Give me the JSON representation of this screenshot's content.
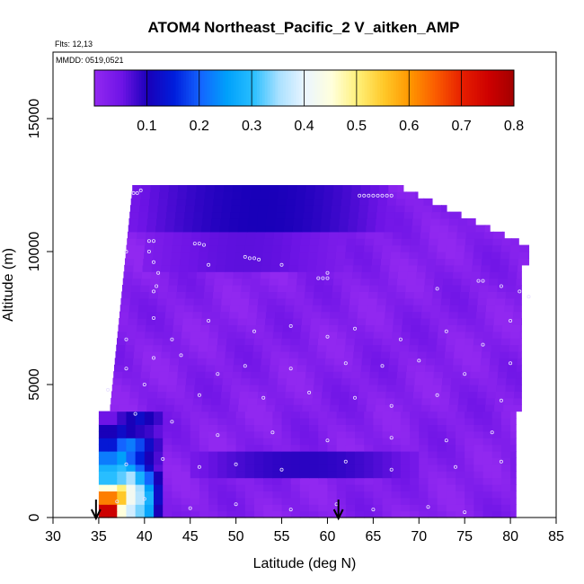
{
  "chart_data": {
    "type": "heatmap",
    "title": "ATOM4 Northeast_Pacific_2 V_aitken_AMP",
    "subtitle_flights": "Flts: 12,13",
    "subtitle_dates": "MMDD: 0519,0521",
    "xlabel": "Latitude (deg N)",
    "ylabel": "Altitude (m)",
    "xlim": [
      30,
      85
    ],
    "ylim": [
      0,
      17500
    ],
    "x_ticks": [
      "30",
      "35",
      "40",
      "45",
      "50",
      "55",
      "60",
      "65",
      "70",
      "75",
      "80",
      "85"
    ],
    "y_ticks": [
      "0",
      "5000",
      "10000",
      "15000"
    ],
    "colorbar": {
      "range": [
        0,
        0.8
      ],
      "tick_labels": [
        "0.1",
        "0.2",
        "0.3",
        "0.4",
        "0.5",
        "0.6",
        "0.7",
        "0.8"
      ]
    },
    "background_value": 0.02,
    "features": [
      {
        "desc": "upper band",
        "lat": [
          38.5,
          67
        ],
        "alt": [
          10800,
          12500
        ],
        "value": 0.1
      },
      {
        "desc": "mid-upper layer",
        "lat": [
          40,
          62
        ],
        "alt": [
          9200,
          10800
        ],
        "value": 0.06
      },
      {
        "desc": "low band",
        "lat": [
          45,
          70
        ],
        "alt": [
          1400,
          2400
        ],
        "value": 0.09
      },
      {
        "desc": "southern boundary column",
        "lat": [
          35,
          41.5
        ],
        "alt": [
          0,
          4000
        ],
        "value": 0.35
      }
    ],
    "profile_column": [
      {
        "alt_top": 4000,
        "alt_bot": 3400,
        "values": [
          0.05,
          0.08,
          0.1,
          0.12,
          0.1,
          0.08
        ]
      },
      {
        "alt_top": 3400,
        "alt_bot": 2800,
        "values": [
          0.1,
          0.12,
          0.1,
          0.09,
          0.08,
          0.06
        ]
      },
      {
        "alt_top": 2800,
        "alt_bot": 2400,
        "values": [
          0.14,
          0.2,
          0.22,
          0.18,
          0.12,
          0.08
        ]
      },
      {
        "alt_top": 2400,
        "alt_bot": 2000,
        "values": [
          0.22,
          0.25,
          0.2,
          0.15,
          0.1,
          0.07
        ]
      },
      {
        "alt_top": 2000,
        "alt_bot": 1600,
        "values": [
          0.28,
          0.3,
          0.26,
          0.2,
          0.12,
          0.06
        ]
      },
      {
        "alt_top": 1600,
        "alt_bot": 1200,
        "values": [
          0.3,
          0.32,
          0.35,
          0.28,
          0.2,
          0.1
        ]
      },
      {
        "alt_top": 1200,
        "alt_bot": 800,
        "values": [
          0.45,
          0.5,
          0.42,
          0.35,
          0.25,
          0.12
        ]
      },
      {
        "alt_top": 800,
        "alt_bot": 400,
        "values": [
          0.62,
          0.55,
          0.42,
          0.36,
          0.28,
          0.12
        ]
      },
      {
        "alt_top": 400,
        "alt_bot": 0,
        "values": [
          0.75,
          0.45,
          0.38,
          0.33,
          0.26,
          0.1
        ]
      }
    ],
    "flight_markers_lat": [
      34.7,
      61.2
    ]
  }
}
